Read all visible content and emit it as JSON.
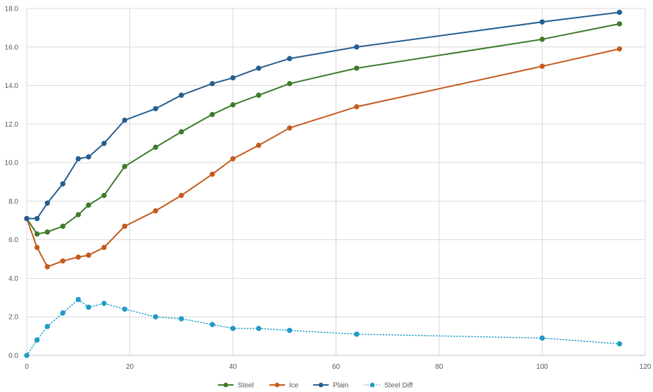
{
  "chart_data": {
    "type": "line",
    "title": "",
    "xlabel": "",
    "ylabel": "",
    "xlim": [
      0,
      120
    ],
    "ylim": [
      0,
      18
    ],
    "x_ticks": [
      "0",
      "20",
      "40",
      "60",
      "80",
      "100",
      "120"
    ],
    "y_ticks": [
      "0.0",
      "2.0",
      "4.0",
      "6.0",
      "8.0",
      "10.0",
      "12.0",
      "14.0",
      "16.0",
      "18.0"
    ],
    "grid": true,
    "legend_position": "bottom",
    "series": [
      {
        "name": "Steel",
        "color": "#3d7a2a",
        "line_style": "solid",
        "points": [
          [
            0,
            7.1
          ],
          [
            2,
            6.3
          ],
          [
            4,
            6.4
          ],
          [
            7,
            6.7
          ],
          [
            10,
            7.3
          ],
          [
            12,
            7.8
          ],
          [
            15,
            8.3
          ],
          [
            19,
            9.8
          ],
          [
            25,
            10.8
          ],
          [
            30,
            11.6
          ],
          [
            36,
            12.5
          ],
          [
            40,
            13.0
          ],
          [
            45,
            13.5
          ],
          [
            51,
            14.1
          ],
          [
            64,
            14.9
          ],
          [
            100,
            16.4
          ],
          [
            115,
            17.2
          ]
        ]
      },
      {
        "name": "Ice",
        "color": "#c55a1e",
        "line_style": "solid",
        "points": [
          [
            0,
            7.1
          ],
          [
            2,
            5.6
          ],
          [
            4,
            4.6
          ],
          [
            7,
            4.9
          ],
          [
            10,
            5.1
          ],
          [
            12,
            5.2
          ],
          [
            15,
            5.6
          ],
          [
            19,
            6.7
          ],
          [
            25,
            7.5
          ],
          [
            30,
            8.3
          ],
          [
            36,
            9.4
          ],
          [
            40,
            10.2
          ],
          [
            45,
            10.9
          ],
          [
            51,
            11.8
          ],
          [
            64,
            12.9
          ],
          [
            100,
            15.0
          ],
          [
            115,
            15.9
          ]
        ]
      },
      {
        "name": "Plain",
        "color": "#255e91",
        "line_style": "solid",
        "points": [
          [
            0,
            7.1
          ],
          [
            2,
            7.1
          ],
          [
            4,
            7.9
          ],
          [
            7,
            8.9
          ],
          [
            10,
            10.2
          ],
          [
            12,
            10.3
          ],
          [
            15,
            11.0
          ],
          [
            19,
            12.2
          ],
          [
            25,
            12.8
          ],
          [
            30,
            13.5
          ],
          [
            36,
            14.1
          ],
          [
            40,
            14.4
          ],
          [
            45,
            14.9
          ],
          [
            51,
            15.4
          ],
          [
            64,
            16.0
          ],
          [
            100,
            17.3
          ],
          [
            115,
            17.8
          ]
        ]
      },
      {
        "name": "Steel Diff",
        "color": "#1f9bc8",
        "line_style": "dotted",
        "points": [
          [
            0,
            0.0
          ],
          [
            2,
            0.8
          ],
          [
            4,
            1.5
          ],
          [
            7,
            2.2
          ],
          [
            10,
            2.9
          ],
          [
            12,
            2.5
          ],
          [
            15,
            2.7
          ],
          [
            19,
            2.4
          ],
          [
            25,
            2.0
          ],
          [
            30,
            1.9
          ],
          [
            36,
            1.6
          ],
          [
            40,
            1.4
          ],
          [
            45,
            1.4
          ],
          [
            51,
            1.3
          ],
          [
            64,
            1.1
          ],
          [
            100,
            0.9
          ],
          [
            115,
            0.6
          ]
        ]
      }
    ]
  },
  "colors": {
    "grid": "#d9d9d9",
    "axis": "#bfbfbf",
    "marker_outline": "#1f5f4a"
  }
}
